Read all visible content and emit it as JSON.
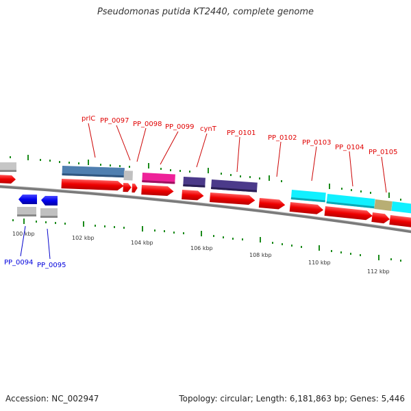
{
  "title": "Pseudomonas putida KT2440, complete genome",
  "accession": "Accession: NC_002947",
  "summary": "Topology: circular; Length: 6,181,863 bp; Genes: 5,446",
  "colors": {
    "cds_red": "#ff0000",
    "cds_blue": "#0000ee",
    "gray": "#bbbbbb",
    "steelblue": "#4f7fb0",
    "magenta": "#ee2299",
    "purple": "#4b3a8a",
    "cyan": "#11f0ff",
    "khaki": "#b8ae74",
    "tick_green": "#1a8a1a",
    "backbone": "#7a7a7a"
  },
  "scale_labels": [
    "100 kbp",
    "102 kbp",
    "104 kbp",
    "106 kbp",
    "108 kbp",
    "110 kbp",
    "112 kbp"
  ],
  "gene_labels_top": [
    "prlC",
    "PP_0097",
    "PP_0098",
    "PP_0099",
    "cynT",
    "PP_0101",
    "PP_0102",
    "PP_0103",
    "PP_0104",
    "PP_0105"
  ],
  "gene_labels_bottom": [
    "PP_0094",
    "PP_0095"
  ]
}
